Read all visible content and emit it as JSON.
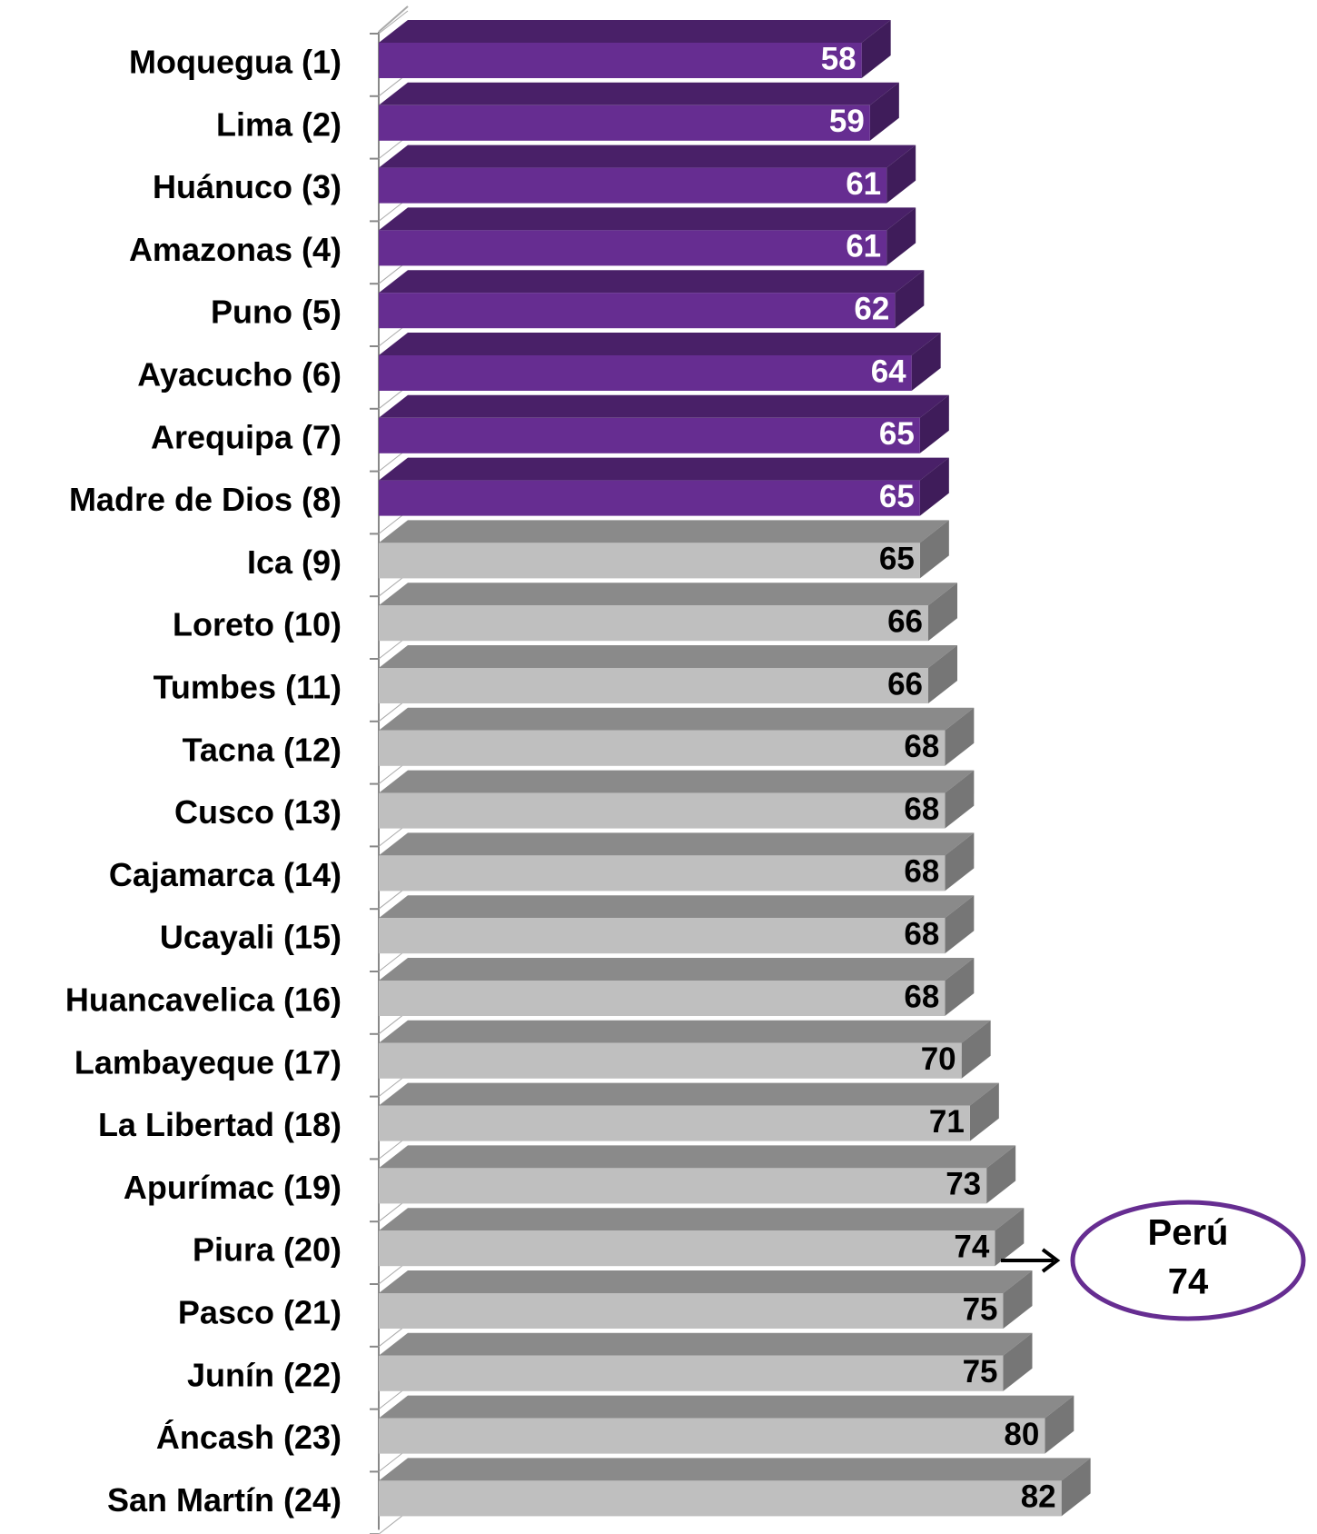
{
  "chart_data": {
    "type": "bar3d",
    "categories": [
      "Moquegua (1)",
      "Lima (2)",
      "Huánuco (3)",
      "Amazonas (4)",
      "Puno (5)",
      "Ayacucho (6)",
      "Arequipa (7)",
      "Madre de Dios (8)",
      "Ica (9)",
      "Loreto (10)",
      "Tumbes (11)",
      "Tacna (12)",
      "Cusco (13)",
      "Cajamarca (14)",
      "Ucayali (15)",
      "Huancavelica (16)",
      "Lambayeque (17)",
      "La Libertad (18)",
      "Apurímac (19)",
      "Piura (20)",
      "Pasco (21)",
      "Junín (22)",
      "Áncash (23)",
      "San Martín (24)"
    ],
    "values": [
      58,
      59,
      61,
      61,
      62,
      64,
      65,
      65,
      65,
      66,
      66,
      68,
      68,
      68,
      68,
      68,
      70,
      71,
      73,
      74,
      75,
      75,
      80,
      82
    ],
    "colors": [
      "#662d91",
      "#662d91",
      "#662d91",
      "#662d91",
      "#662d91",
      "#662d91",
      "#662d91",
      "#662d91",
      "#bfbfbf",
      "#bfbfbf",
      "#bfbfbf",
      "#bfbfbf",
      "#bfbfbf",
      "#bfbfbf",
      "#bfbfbf",
      "#bfbfbf",
      "#bfbfbf",
      "#bfbfbf",
      "#bfbfbf",
      "#bfbfbf",
      "#bfbfbf",
      "#bfbfbf",
      "#bfbfbf",
      "#bfbfbf"
    ],
    "value_label_colors": [
      "#ffffff",
      "#ffffff",
      "#ffffff",
      "#ffffff",
      "#ffffff",
      "#ffffff",
      "#ffffff",
      "#ffffff",
      "#000000",
      "#000000",
      "#000000",
      "#000000",
      "#000000",
      "#000000",
      "#000000",
      "#000000",
      "#000000",
      "#000000",
      "#000000",
      "#000000",
      "#000000",
      "#000000",
      "#000000",
      "#000000"
    ],
    "xlim": [
      0,
      90
    ],
    "annotation": {
      "text": "Perú",
      "value": 74,
      "color": "#662d91"
    }
  }
}
